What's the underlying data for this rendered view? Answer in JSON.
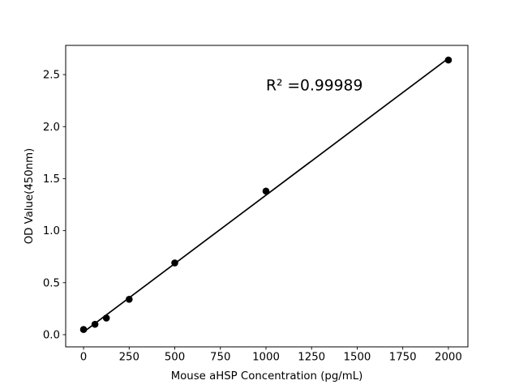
{
  "figure": {
    "background": "#ffffff"
  },
  "chart_data": {
    "type": "scatter",
    "title": "",
    "xlabel": "Mouse aHSP Concentration (pg/mL)",
    "ylabel": "OD Value(450nm)",
    "x": [
      0,
      62.5,
      125,
      250,
      500,
      1000,
      2000
    ],
    "y": [
      0.05,
      0.1,
      0.16,
      0.34,
      0.69,
      1.38,
      2.64
    ],
    "trendline": "linear-fit",
    "annotation": {
      "text": "R² =0.99989",
      "r_squared": 0.99989,
      "x": 1000,
      "y": 2.35
    },
    "xticks": [
      0,
      250,
      500,
      750,
      1000,
      1250,
      1500,
      1750,
      2000
    ],
    "yticks": [
      0.0,
      0.5,
      1.0,
      1.5,
      2.0,
      2.5
    ],
    "xlim": [
      -98,
      2107
    ],
    "ylim": [
      -0.117,
      2.781
    ],
    "grid": false,
    "legend": null,
    "marker_color": "#000000",
    "line_color": "#000000",
    "axis_color": "#000000",
    "text_color": "#000000"
  }
}
